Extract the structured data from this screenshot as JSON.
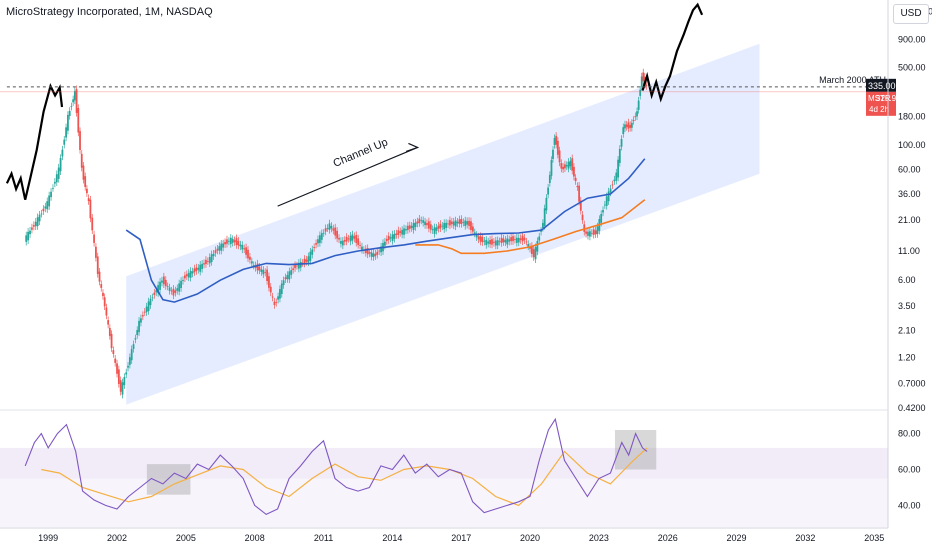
{
  "header": {
    "title": "MicroStrategy Incorporated, 1M, NASDAQ",
    "currency": "USD"
  },
  "colors": {
    "channel": "#2962ff",
    "ma_blue": "#2f5ec4",
    "ma_orange": "#f57c1f",
    "bull": "#26a69a",
    "bear": "#ef5350",
    "projection": "#000000",
    "rsi": "#7e57c2",
    "rsi_ma": "#f5b041",
    "rsi_zone": "#ede7f6",
    "ath_line": "#555555",
    "tag_dark": "#131722",
    "tag_red": "#ef5350"
  },
  "chart_data": {
    "type": "line",
    "x_ticks": [
      "1999",
      "2002",
      "2005",
      "2008",
      "2011",
      "2014",
      "2017",
      "2020",
      "2023",
      "2026",
      "2029",
      "2032",
      "2035"
    ],
    "y_scale": "log",
    "y_ticks": [
      "1,600.00",
      "900.00",
      "500.00",
      "180.00",
      "100.00",
      "60.00",
      "36.00",
      "21.00",
      "11.00",
      "6.00",
      "3.50",
      "2.10",
      "1.20",
      "0.7000",
      "0.4200"
    ],
    "ylim": [
      0.42,
      1800
    ],
    "annotations": [
      {
        "text": "Channel Up"
      },
      {
        "text": "March 2000 ATH"
      }
    ],
    "price_tags": [
      {
        "label": "335.00"
      },
      {
        "label": "MSTR",
        "value": "326.91",
        "note": "4d 2h"
      }
    ],
    "price_series": [
      {
        "date": 1998.0,
        "close": 14
      },
      {
        "date": 1998.5,
        "close": 20
      },
      {
        "date": 1999.0,
        "close": 30
      },
      {
        "date": 1999.5,
        "close": 60
      },
      {
        "date": 1999.9,
        "close": 180
      },
      {
        "date": 2000.2,
        "close": 300
      },
      {
        "date": 2000.5,
        "close": 60
      },
      {
        "date": 2000.8,
        "close": 30
      },
      {
        "date": 2001.2,
        "close": 7
      },
      {
        "date": 2001.5,
        "close": 3.5
      },
      {
        "date": 2001.8,
        "close": 1.5
      },
      {
        "date": 2002.2,
        "close": 0.6
      },
      {
        "date": 2002.6,
        "close": 1.2
      },
      {
        "date": 2003.0,
        "close": 2.5
      },
      {
        "date": 2003.5,
        "close": 4
      },
      {
        "date": 2004.0,
        "close": 6
      },
      {
        "date": 2004.5,
        "close": 4.5
      },
      {
        "date": 2005.0,
        "close": 6.5
      },
      {
        "date": 2005.5,
        "close": 7.5
      },
      {
        "date": 2006.0,
        "close": 9
      },
      {
        "date": 2006.5,
        "close": 12
      },
      {
        "date": 2007.0,
        "close": 14
      },
      {
        "date": 2007.5,
        "close": 12
      },
      {
        "date": 2008.0,
        "close": 8
      },
      {
        "date": 2008.5,
        "close": 7
      },
      {
        "date": 2008.9,
        "close": 3.5
      },
      {
        "date": 2009.3,
        "close": 6
      },
      {
        "date": 2009.8,
        "close": 8
      },
      {
        "date": 2010.3,
        "close": 9
      },
      {
        "date": 2010.8,
        "close": 14
      },
      {
        "date": 2011.3,
        "close": 19
      },
      {
        "date": 2011.8,
        "close": 13
      },
      {
        "date": 2012.3,
        "close": 15
      },
      {
        "date": 2012.8,
        "close": 11
      },
      {
        "date": 2013.3,
        "close": 10
      },
      {
        "date": 2013.8,
        "close": 14
      },
      {
        "date": 2014.3,
        "close": 16
      },
      {
        "date": 2014.8,
        "close": 18
      },
      {
        "date": 2015.3,
        "close": 21
      },
      {
        "date": 2015.8,
        "close": 17
      },
      {
        "date": 2016.3,
        "close": 19
      },
      {
        "date": 2016.8,
        "close": 20
      },
      {
        "date": 2017.3,
        "close": 20
      },
      {
        "date": 2017.8,
        "close": 14
      },
      {
        "date": 2018.3,
        "close": 13
      },
      {
        "date": 2018.8,
        "close": 13.5
      },
      {
        "date": 2019.3,
        "close": 14
      },
      {
        "date": 2019.8,
        "close": 14
      },
      {
        "date": 2020.2,
        "close": 10
      },
      {
        "date": 2020.6,
        "close": 20
      },
      {
        "date": 2020.9,
        "close": 55
      },
      {
        "date": 2021.1,
        "close": 120
      },
      {
        "date": 2021.4,
        "close": 60
      },
      {
        "date": 2021.8,
        "close": 70
      },
      {
        "date": 2022.1,
        "close": 40
      },
      {
        "date": 2022.4,
        "close": 16
      },
      {
        "date": 2022.9,
        "close": 16
      },
      {
        "date": 2023.3,
        "close": 30
      },
      {
        "date": 2023.8,
        "close": 55
      },
      {
        "date": 2024.1,
        "close": 150
      },
      {
        "date": 2024.4,
        "close": 145
      },
      {
        "date": 2024.7,
        "close": 200
      },
      {
        "date": 2024.9,
        "close": 420
      },
      {
        "date": 2025.1,
        "close": 335
      }
    ],
    "ma_blue": [
      {
        "date": 2002.4,
        "value": 17
      },
      {
        "date": 2003.0,
        "value": 14
      },
      {
        "date": 2003.5,
        "value": 6
      },
      {
        "date": 2004.0,
        "value": 4
      },
      {
        "date": 2004.5,
        "value": 3.8
      },
      {
        "date": 2005.5,
        "value": 4.5
      },
      {
        "date": 2006.5,
        "value": 6
      },
      {
        "date": 2007.5,
        "value": 7.5
      },
      {
        "date": 2008.5,
        "value": 8.5
      },
      {
        "date": 2009.5,
        "value": 8.3
      },
      {
        "date": 2010.5,
        "value": 8.5
      },
      {
        "date": 2011.5,
        "value": 10
      },
      {
        "date": 2012.5,
        "value": 11
      },
      {
        "date": 2013.5,
        "value": 11.8
      },
      {
        "date": 2014.5,
        "value": 12.5
      },
      {
        "date": 2015.5,
        "value": 13.5
      },
      {
        "date": 2016.5,
        "value": 14.5
      },
      {
        "date": 2017.5,
        "value": 15.5
      },
      {
        "date": 2018.5,
        "value": 15.8
      },
      {
        "date": 2019.5,
        "value": 16
      },
      {
        "date": 2020.5,
        "value": 17
      },
      {
        "date": 2021.5,
        "value": 25
      },
      {
        "date": 2022.5,
        "value": 33
      },
      {
        "date": 2023.5,
        "value": 36
      },
      {
        "date": 2024.3,
        "value": 50
      },
      {
        "date": 2025.0,
        "value": 75
      }
    ],
    "ma_orange": [
      {
        "date": 2015.0,
        "value": 12.5
      },
      {
        "date": 2016.0,
        "value": 12.5
      },
      {
        "date": 2016.6,
        "value": 11.5
      },
      {
        "date": 2017.0,
        "value": 10.5
      },
      {
        "date": 2018.0,
        "value": 10.5
      },
      {
        "date": 2019.0,
        "value": 11
      },
      {
        "date": 2020.0,
        "value": 12
      },
      {
        "date": 2021.0,
        "value": 14
      },
      {
        "date": 2022.0,
        "value": 16.5
      },
      {
        "date": 2023.0,
        "value": 19
      },
      {
        "date": 2024.0,
        "value": 22
      },
      {
        "date": 2025.0,
        "value": 32
      }
    ],
    "projection_1999": [
      {
        "date": 1997.2,
        "close": 45
      },
      {
        "date": 1997.4,
        "close": 55
      },
      {
        "date": 1997.6,
        "close": 40
      },
      {
        "date": 1997.8,
        "close": 50
      },
      {
        "date": 1998.0,
        "close": 32
      },
      {
        "date": 1998.2,
        "close": 48
      },
      {
        "date": 1998.5,
        "close": 90
      },
      {
        "date": 1998.8,
        "close": 200
      },
      {
        "date": 1999.1,
        "close": 340
      },
      {
        "date": 1999.3,
        "close": 280
      },
      {
        "date": 1999.5,
        "close": 330
      },
      {
        "date": 1999.6,
        "close": 220
      }
    ],
    "projection_2025": [
      {
        "date": 2024.9,
        "close": 310
      },
      {
        "date": 2025.1,
        "close": 420
      },
      {
        "date": 2025.3,
        "close": 280
      },
      {
        "date": 2025.5,
        "close": 370
      },
      {
        "date": 2025.7,
        "close": 260
      },
      {
        "date": 2025.9,
        "close": 340
      },
      {
        "date": 2026.1,
        "close": 420
      },
      {
        "date": 2026.4,
        "close": 700
      },
      {
        "date": 2026.7,
        "close": 1000
      },
      {
        "date": 2026.9,
        "close": 1300
      },
      {
        "date": 2027.1,
        "close": 1650
      },
      {
        "date": 2027.3,
        "close": 1850
      },
      {
        "date": 2027.5,
        "close": 1500
      }
    ],
    "channel": {
      "lower_start": {
        "date": 2002.4,
        "value": 0.45
      },
      "lower_end": {
        "date": 2030.0,
        "value": 55
      },
      "upper_start": {
        "date": 2002.4,
        "value": 6.5
      },
      "upper_end": {
        "date": 2030.0,
        "value": 820
      }
    },
    "ath_level": 335,
    "rsi": {
      "y_ticks": [
        "80.00",
        "60.00",
        "40.00"
      ],
      "zone": [
        55,
        72
      ],
      "series": [
        {
          "date": 1998.0,
          "value": 62
        },
        {
          "date": 1998.4,
          "value": 75
        },
        {
          "date": 1998.7,
          "value": 80
        },
        {
          "date": 1999.0,
          "value": 72
        },
        {
          "date": 1999.4,
          "value": 80
        },
        {
          "date": 1999.8,
          "value": 85
        },
        {
          "date": 2000.2,
          "value": 70
        },
        {
          "date": 2000.5,
          "value": 48
        },
        {
          "date": 2001.0,
          "value": 43
        },
        {
          "date": 2001.5,
          "value": 40
        },
        {
          "date": 2002.0,
          "value": 38
        },
        {
          "date": 2002.5,
          "value": 45
        },
        {
          "date": 2003.0,
          "value": 50
        },
        {
          "date": 2003.5,
          "value": 55
        },
        {
          "date": 2004.0,
          "value": 52
        },
        {
          "date": 2004.5,
          "value": 58
        },
        {
          "date": 2005.0,
          "value": 55
        },
        {
          "date": 2005.5,
          "value": 63
        },
        {
          "date": 2006.0,
          "value": 60
        },
        {
          "date": 2006.5,
          "value": 68
        },
        {
          "date": 2007.0,
          "value": 62
        },
        {
          "date": 2007.5,
          "value": 55
        },
        {
          "date": 2008.0,
          "value": 40
        },
        {
          "date": 2008.5,
          "value": 35
        },
        {
          "date": 2009.0,
          "value": 38
        },
        {
          "date": 2009.5,
          "value": 55
        },
        {
          "date": 2010.0,
          "value": 62
        },
        {
          "date": 2010.5,
          "value": 70
        },
        {
          "date": 2011.0,
          "value": 76
        },
        {
          "date": 2011.5,
          "value": 55
        },
        {
          "date": 2012.0,
          "value": 50
        },
        {
          "date": 2012.5,
          "value": 48
        },
        {
          "date": 2013.0,
          "value": 50
        },
        {
          "date": 2013.5,
          "value": 62
        },
        {
          "date": 2014.0,
          "value": 60
        },
        {
          "date": 2014.5,
          "value": 68
        },
        {
          "date": 2015.0,
          "value": 58
        },
        {
          "date": 2015.5,
          "value": 63
        },
        {
          "date": 2016.0,
          "value": 56
        },
        {
          "date": 2016.5,
          "value": 60
        },
        {
          "date": 2017.0,
          "value": 58
        },
        {
          "date": 2017.5,
          "value": 42
        },
        {
          "date": 2018.0,
          "value": 36
        },
        {
          "date": 2018.5,
          "value": 38
        },
        {
          "date": 2019.0,
          "value": 40
        },
        {
          "date": 2019.5,
          "value": 42
        },
        {
          "date": 2020.0,
          "value": 45
        },
        {
          "date": 2020.4,
          "value": 65
        },
        {
          "date": 2020.8,
          "value": 82
        },
        {
          "date": 2021.1,
          "value": 88
        },
        {
          "date": 2021.5,
          "value": 65
        },
        {
          "date": 2022.0,
          "value": 55
        },
        {
          "date": 2022.5,
          "value": 45
        },
        {
          "date": 2023.0,
          "value": 55
        },
        {
          "date": 2023.5,
          "value": 58
        },
        {
          "date": 2024.0,
          "value": 75
        },
        {
          "date": 2024.3,
          "value": 68
        },
        {
          "date": 2024.6,
          "value": 80
        },
        {
          "date": 2024.9,
          "value": 72
        },
        {
          "date": 2025.1,
          "value": 70
        }
      ],
      "ma": [
        {
          "date": 1998.7,
          "value": 60
        },
        {
          "date": 1999.5,
          "value": 58
        },
        {
          "date": 2000.5,
          "value": 50
        },
        {
          "date": 2001.5,
          "value": 46
        },
        {
          "date": 2002.5,
          "value": 42
        },
        {
          "date": 2003.5,
          "value": 45
        },
        {
          "date": 2004.5,
          "value": 52
        },
        {
          "date": 2005.5,
          "value": 57
        },
        {
          "date": 2006.5,
          "value": 62
        },
        {
          "date": 2007.5,
          "value": 60
        },
        {
          "date": 2008.5,
          "value": 50
        },
        {
          "date": 2009.5,
          "value": 45
        },
        {
          "date": 2010.5,
          "value": 55
        },
        {
          "date": 2011.5,
          "value": 63
        },
        {
          "date": 2012.5,
          "value": 56
        },
        {
          "date": 2013.5,
          "value": 54
        },
        {
          "date": 2014.5,
          "value": 60
        },
        {
          "date": 2015.5,
          "value": 62
        },
        {
          "date": 2016.5,
          "value": 60
        },
        {
          "date": 2017.5,
          "value": 55
        },
        {
          "date": 2018.5,
          "value": 45
        },
        {
          "date": 2019.5,
          "value": 40
        },
        {
          "date": 2020.5,
          "value": 52
        },
        {
          "date": 2021.5,
          "value": 70
        },
        {
          "date": 2022.5,
          "value": 58
        },
        {
          "date": 2023.5,
          "value": 52
        },
        {
          "date": 2024.5,
          "value": 65
        },
        {
          "date": 2025.1,
          "value": 72
        }
      ],
      "highlight_boxes": [
        {
          "from": 2003.3,
          "to": 2005.2,
          "low": 46,
          "high": 63
        },
        {
          "from": 2023.7,
          "to": 2025.5,
          "low": 60,
          "high": 82
        }
      ]
    }
  }
}
